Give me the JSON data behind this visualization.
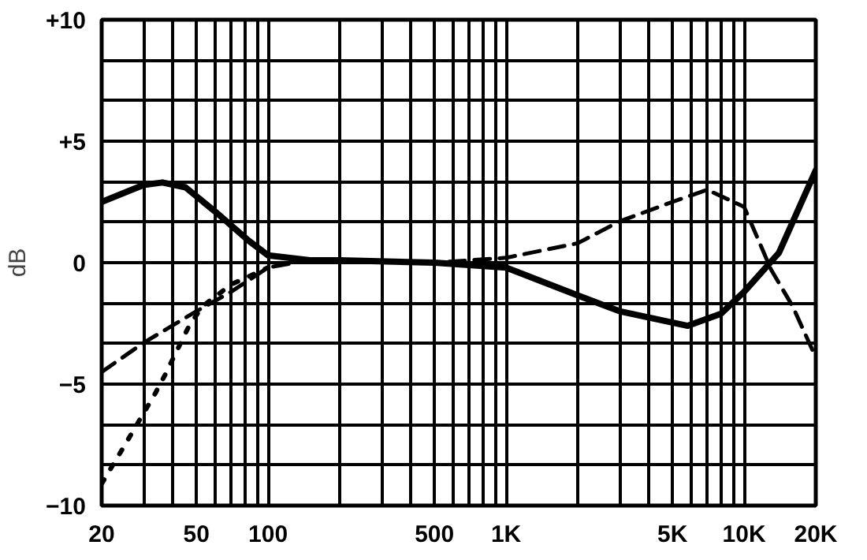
{
  "chart_data": {
    "type": "line",
    "ylabel": "dB",
    "log": "x",
    "grid": true,
    "xlim": [
      20,
      20000
    ],
    "ylim": [
      -10,
      10
    ],
    "xticks": [
      20,
      {
        "value": 30,
        "label": null
      },
      {
        "value": 40,
        "label": null
      },
      50,
      {
        "value": 60,
        "label": null
      },
      {
        "value": 70,
        "label": null
      },
      {
        "value": 80,
        "label": null
      },
      {
        "value": 90,
        "label": null
      },
      100,
      {
        "value": 200,
        "label": null
      },
      {
        "value": 300,
        "label": null
      },
      {
        "value": 400,
        "label": null
      },
      500,
      {
        "value": 600,
        "label": null
      },
      {
        "value": 700,
        "label": null
      },
      {
        "value": 800,
        "label": null
      },
      {
        "value": 900,
        "label": null
      },
      {
        "value": 1000,
        "label": "1K"
      },
      {
        "value": 2000,
        "label": null
      },
      {
        "value": 3000,
        "label": null
      },
      {
        "value": 4000,
        "label": null
      },
      {
        "value": 5000,
        "label": "5K"
      },
      {
        "value": 6000,
        "label": null
      },
      {
        "value": 7000,
        "label": null
      },
      {
        "value": 8000,
        "label": null
      },
      {
        "value": 9000,
        "label": null
      },
      {
        "value": 10000,
        "label": "10K"
      },
      {
        "value": 20000,
        "label": "20K"
      }
    ],
    "yticks": [
      {
        "value": -10,
        "label": "−10"
      },
      {
        "value": -8.33,
        "label": null
      },
      {
        "value": -6.67,
        "label": null
      },
      {
        "value": -5,
        "label": "−5"
      },
      {
        "value": -3.33,
        "label": null
      },
      {
        "value": -1.67,
        "label": null
      },
      0,
      {
        "value": 1.67,
        "label": null
      },
      {
        "value": 3.33,
        "label": null
      },
      {
        "value": 5,
        "label": "+5"
      },
      {
        "value": 6.67,
        "label": null
      },
      {
        "value": 8.33,
        "label": null
      },
      {
        "value": 10,
        "label": "+10"
      }
    ],
    "series": [
      {
        "color": "#000000",
        "line_style": "solid",
        "x": [
          20,
          30,
          36,
          45,
          60,
          83,
          100,
          150,
          200,
          500,
          1000,
          2000,
          3000,
          5800,
          8000,
          10000,
          14000,
          20000
        ],
        "values": [
          2.5,
          3.2,
          3.3,
          3.1,
          2.1,
          0.9,
          0.3,
          0.1,
          0.1,
          0.0,
          -0.2,
          -1.35,
          -2.0,
          -2.6,
          -2.1,
          -1.2,
          0.4,
          3.8
        ]
      },
      {
        "color": "#000000",
        "line_style": "dashed",
        "x": [
          20,
          30,
          50,
          70,
          100,
          150,
          500,
          1000,
          2000,
          3000,
          5000,
          7000,
          10000,
          13000,
          16000,
          20000
        ],
        "values": [
          -4.5,
          -3.3,
          -2.0,
          -1.2,
          -0.2,
          0.1,
          0.0,
          0.2,
          0.8,
          1.7,
          2.5,
          3.0,
          2.3,
          -0.3,
          -1.8,
          -3.9
        ]
      },
      {
        "color": "#000000",
        "line_style": "dotted",
        "x": [
          20,
          24.7,
          33.5,
          37,
          46.6,
          53,
          70,
          100
        ],
        "values": [
          -9.1,
          -7.6,
          -5.4,
          -4.6,
          -2.6,
          -1.8,
          -0.9,
          -0.2
        ]
      }
    ]
  }
}
